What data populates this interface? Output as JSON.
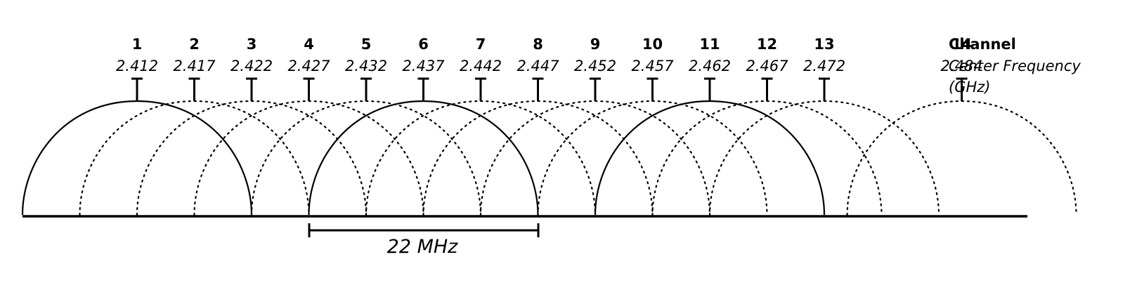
{
  "legend": {
    "channel_label": "Channel",
    "frequency_label_line1": "Center Frequency",
    "frequency_label_line2": "(GHz)"
  },
  "bandwidth_label": "22 MHz",
  "channels": [
    {
      "number": "1",
      "frequency": "2.412",
      "solid": true
    },
    {
      "number": "2",
      "frequency": "2.417",
      "solid": false
    },
    {
      "number": "3",
      "frequency": "2.422",
      "solid": false
    },
    {
      "number": "4",
      "frequency": "2.427",
      "solid": false
    },
    {
      "number": "5",
      "frequency": "2.432",
      "solid": false
    },
    {
      "number": "6",
      "frequency": "2.437",
      "solid": true
    },
    {
      "number": "7",
      "frequency": "2.442",
      "solid": false
    },
    {
      "number": "8",
      "frequency": "2.447",
      "solid": false
    },
    {
      "number": "9",
      "frequency": "2.452",
      "solid": false
    },
    {
      "number": "10",
      "frequency": "2.457",
      "solid": false
    },
    {
      "number": "11",
      "frequency": "2.462",
      "solid": true
    },
    {
      "number": "12",
      "frequency": "2.467",
      "solid": false
    },
    {
      "number": "13",
      "frequency": "2.472",
      "solid": false
    },
    {
      "number": "14",
      "frequency": "2.484",
      "solid": false
    }
  ],
  "colors": {
    "stroke": "#000000",
    "background": "#ffffff"
  }
}
